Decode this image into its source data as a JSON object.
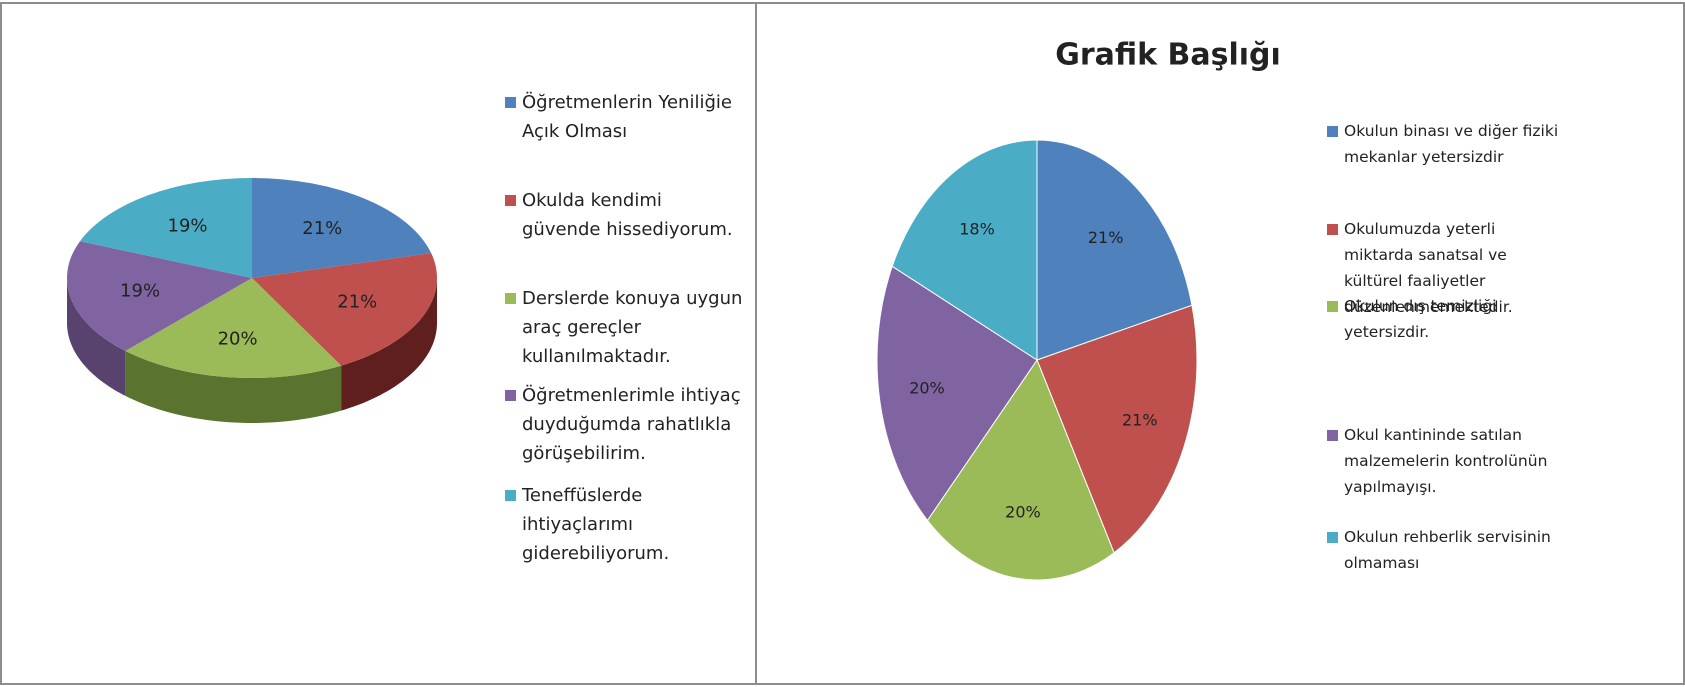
{
  "chart_data": [
    {
      "type": "pie3d",
      "categories": [
        "Öğretmenlerin Yeniliğie Açık Olması",
        "Okulda kendimi güvende hissediyorum.",
        "Derslerde konuya uygun araç gereçler kullanılmaktadır.",
        "Öğretmenlerimle ihtiyaç duyduğumda rahatlıkla görüşebilirim.",
        "Teneffüslerde ihtiyaçlarımı giderebiliyorum."
      ],
      "values": [
        21,
        21,
        20,
        19,
        19
      ],
      "value_labels": [
        "21%",
        "21%",
        "20%",
        "19%",
        "19%"
      ],
      "colors": [
        "#4f81bd",
        "#c0504d",
        "#9bbb59",
        "#8064a2",
        "#4bacc6"
      ],
      "side_colors": [
        "#36598a",
        "#5e1f1e",
        "#5a7430",
        "#58436f",
        "#2f7d91"
      ],
      "legend": "right"
    },
    {
      "type": "pie",
      "title": "Grafik Başlığı",
      "categories": [
        "Okulun binası ve diğer fiziki mekanlar yetersizdir",
        "Okulumuzda yeterli miktarda sanatsal ve kültürel faaliyetler düzenlenmemektedir.",
        "Okulun dış temizliği yetersizdir.",
        "Okul kantininde satılan malzemelerin kontrolünün yapılmayışı.",
        "Okulun rehberlik servisinin olmaması"
      ],
      "values": [
        21,
        21,
        20,
        20,
        18
      ],
      "value_labels": [
        "21%",
        "21%",
        "20%",
        "20%",
        "18%"
      ],
      "colors": [
        "#4f81bd",
        "#c0504d",
        "#9bbb59",
        "#8064a2",
        "#4bacc6"
      ],
      "legend": "right"
    }
  ]
}
